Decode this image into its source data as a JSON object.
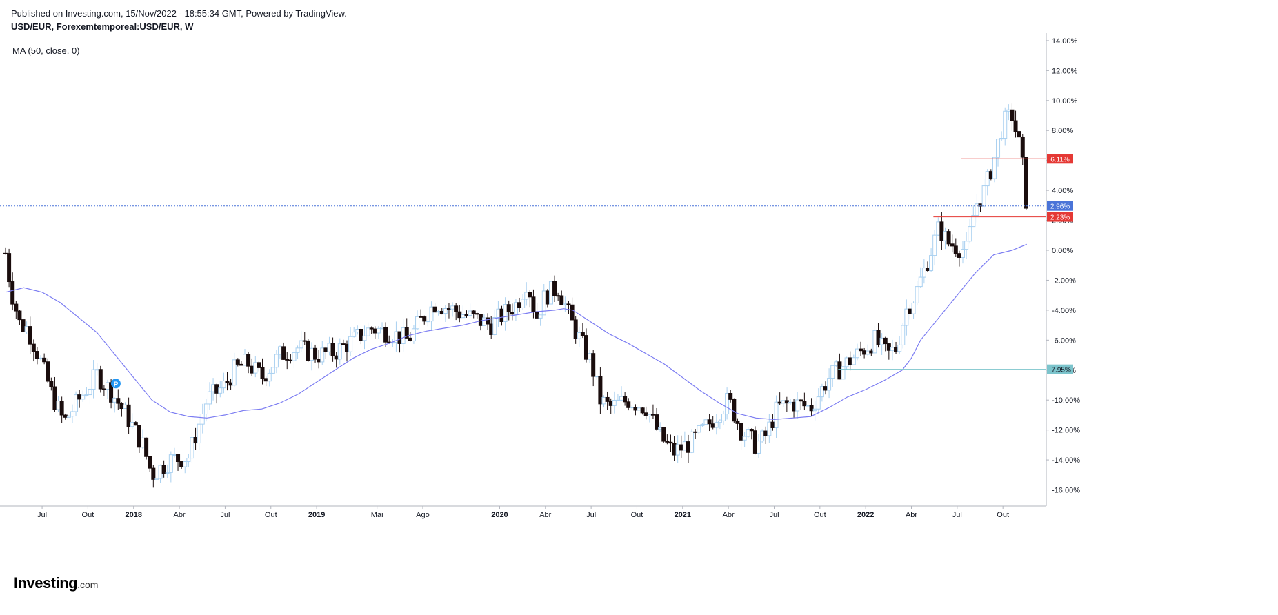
{
  "header": {
    "published": "Published on Investing.com, 15/Nov/2022 - 18:55:34 GMT, Powered by TradingView.",
    "symbol": "USD/EUR, Forexemtemporeal:USD/EUR, W"
  },
  "indicator": {
    "label": "MA (50, close, 0)",
    "color": "#7b7cf2"
  },
  "logo": {
    "brand": "Investing",
    "tld": ".com"
  },
  "marker": {
    "label": "P",
    "color": "#2196f3"
  },
  "colors": {
    "up_outline": "#a9d0f0",
    "down_fill": "#1a0d0d",
    "hline": "#e53935",
    "current": "#4a74d8",
    "level": "#7cc4cc"
  },
  "chart_data": {
    "type": "candlestick",
    "timeframe": "W",
    "y_unit": "%",
    "ylim": [
      -17,
      14.5
    ],
    "y_ticks": [
      "14.00%",
      "12.00%",
      "10.00%",
      "8.00%",
      "6.00%",
      "4.00%",
      "2.00%",
      "0.00%",
      "-2.00%",
      "-4.00%",
      "-6.00%",
      "-8.00%",
      "-10.00%",
      "-12.00%",
      "-14.00%",
      "-16.00%"
    ],
    "x_ticks": [
      {
        "label": "Jul",
        "t": 2017.5
      },
      {
        "label": "Out",
        "t": 2017.75
      },
      {
        "label": "2018",
        "t": 2018.0
      },
      {
        "label": "Abr",
        "t": 2018.25
      },
      {
        "label": "Jul",
        "t": 2018.5
      },
      {
        "label": "Out",
        "t": 2018.75
      },
      {
        "label": "2019",
        "t": 2019.0
      },
      {
        "label": "Mai",
        "t": 2019.33
      },
      {
        "label": "Ago",
        "t": 2019.58
      },
      {
        "label": "2020",
        "t": 2020.0
      },
      {
        "label": "Abr",
        "t": 2020.25
      },
      {
        "label": "Jul",
        "t": 2020.5
      },
      {
        "label": "Out",
        "t": 2020.75
      },
      {
        "label": "2021",
        "t": 2021.0
      },
      {
        "label": "Abr",
        "t": 2021.25
      },
      {
        "label": "Jul",
        "t": 2021.5
      },
      {
        "label": "Out",
        "t": 2021.75
      },
      {
        "label": "2022",
        "t": 2022.0
      },
      {
        "label": "Abr",
        "t": 2022.25
      },
      {
        "label": "Jul",
        "t": 2022.5
      },
      {
        "label": "Out",
        "t": 2022.75
      }
    ],
    "price_keypoints": [
      [
        2017.3,
        -0.2
      ],
      [
        2017.33,
        -2.6
      ],
      [
        2017.38,
        -5.0
      ],
      [
        2017.42,
        -5.2
      ],
      [
        2017.48,
        -7.0
      ],
      [
        2017.55,
        -9.5
      ],
      [
        2017.62,
        -11.5
      ],
      [
        2017.7,
        -10.0
      ],
      [
        2017.8,
        -8.3
      ],
      [
        2017.88,
        -9.5
      ],
      [
        2017.96,
        -11.0
      ],
      [
        2018.05,
        -13.0
      ],
      [
        2018.1,
        -15.0
      ],
      [
        2018.2,
        -14.0
      ],
      [
        2018.3,
        -13.8
      ],
      [
        2018.4,
        -10.0
      ],
      [
        2018.5,
        -9.0
      ],
      [
        2018.55,
        -8.0
      ],
      [
        2018.62,
        -7.5
      ],
      [
        2018.7,
        -8.5
      ],
      [
        2018.8,
        -7.0
      ],
      [
        2018.9,
        -6.5
      ],
      [
        2019.0,
        -7.0
      ],
      [
        2019.1,
        -6.8
      ],
      [
        2019.2,
        -6.0
      ],
      [
        2019.3,
        -5.2
      ],
      [
        2019.4,
        -5.5
      ],
      [
        2019.5,
        -6.0
      ],
      [
        2019.58,
        -4.5
      ],
      [
        2019.65,
        -3.5
      ],
      [
        2019.75,
        -4.0
      ],
      [
        2019.85,
        -4.5
      ],
      [
        2019.95,
        -5.0
      ],
      [
        2020.1,
        -3.5
      ],
      [
        2020.15,
        -2.0
      ],
      [
        2020.2,
        -4.5
      ],
      [
        2020.25,
        -3.0
      ],
      [
        2020.32,
        -2.5
      ],
      [
        2020.4,
        -5.0
      ],
      [
        2020.46,
        -6.5
      ],
      [
        2020.5,
        -7.5
      ],
      [
        2020.55,
        -10.0
      ],
      [
        2020.6,
        -10.5
      ],
      [
        2020.7,
        -10.0
      ],
      [
        2020.8,
        -10.5
      ],
      [
        2020.88,
        -12.5
      ],
      [
        2020.95,
        -13.5
      ],
      [
        2021.05,
        -12.8
      ],
      [
        2021.15,
        -11.5
      ],
      [
        2021.25,
        -10.0
      ],
      [
        2021.32,
        -12.0
      ],
      [
        2021.4,
        -13.0
      ],
      [
        2021.45,
        -12.5
      ],
      [
        2021.52,
        -10.5
      ],
      [
        2021.6,
        -10.2
      ],
      [
        2021.7,
        -10.5
      ],
      [
        2021.8,
        -8.5
      ],
      [
        2021.9,
        -7.5
      ],
      [
        2022.0,
        -6.5
      ],
      [
        2022.05,
        -6.0
      ],
      [
        2022.12,
        -7.0
      ],
      [
        2022.17,
        -6.5
      ],
      [
        2022.22,
        -4.0
      ],
      [
        2022.27,
        -3.0
      ],
      [
        2022.33,
        -1.0
      ],
      [
        2022.4,
        1.5
      ],
      [
        2022.45,
        0.5
      ],
      [
        2022.55,
        0.0
      ],
      [
        2022.6,
        3.0
      ],
      [
        2022.65,
        4.0
      ],
      [
        2022.7,
        6.0
      ],
      [
        2022.75,
        8.5
      ],
      [
        2022.8,
        9.0
      ],
      [
        2022.85,
        6.5
      ],
      [
        2022.88,
        3.0
      ]
    ],
    "ma_keypoints": [
      [
        2017.3,
        -2.8
      ],
      [
        2017.4,
        -2.5
      ],
      [
        2017.5,
        -2.8
      ],
      [
        2017.6,
        -3.5
      ],
      [
        2017.7,
        -4.5
      ],
      [
        2017.8,
        -5.5
      ],
      [
        2017.9,
        -7.0
      ],
      [
        2018.0,
        -8.5
      ],
      [
        2018.1,
        -10.0
      ],
      [
        2018.2,
        -10.8
      ],
      [
        2018.3,
        -11.1
      ],
      [
        2018.4,
        -11.2
      ],
      [
        2018.5,
        -11.0
      ],
      [
        2018.6,
        -10.7
      ],
      [
        2018.7,
        -10.6
      ],
      [
        2018.8,
        -10.2
      ],
      [
        2018.9,
        -9.6
      ],
      [
        2019.0,
        -8.8
      ],
      [
        2019.1,
        -8.0
      ],
      [
        2019.2,
        -7.2
      ],
      [
        2019.3,
        -6.6
      ],
      [
        2019.4,
        -6.2
      ],
      [
        2019.5,
        -5.7
      ],
      [
        2019.6,
        -5.4
      ],
      [
        2019.7,
        -5.2
      ],
      [
        2019.8,
        -5.0
      ],
      [
        2019.9,
        -4.7
      ],
      [
        2020.0,
        -4.5
      ],
      [
        2020.1,
        -4.3
      ],
      [
        2020.2,
        -4.1
      ],
      [
        2020.3,
        -4.0
      ],
      [
        2020.35,
        -3.9
      ],
      [
        2020.4,
        -4.0
      ],
      [
        2020.5,
        -4.8
      ],
      [
        2020.6,
        -5.6
      ],
      [
        2020.7,
        -6.2
      ],
      [
        2020.8,
        -6.9
      ],
      [
        2020.9,
        -7.6
      ],
      [
        2021.0,
        -8.5
      ],
      [
        2021.1,
        -9.4
      ],
      [
        2021.2,
        -10.2
      ],
      [
        2021.3,
        -10.9
      ],
      [
        2021.4,
        -11.2
      ],
      [
        2021.5,
        -11.3
      ],
      [
        2021.6,
        -11.2
      ],
      [
        2021.7,
        -11.1
      ],
      [
        2021.8,
        -10.5
      ],
      [
        2021.9,
        -9.8
      ],
      [
        2022.0,
        -9.3
      ],
      [
        2022.1,
        -8.7
      ],
      [
        2022.2,
        -8.0
      ],
      [
        2022.25,
        -7.2
      ],
      [
        2022.3,
        -6.0
      ],
      [
        2022.4,
        -4.5
      ],
      [
        2022.5,
        -3.0
      ],
      [
        2022.6,
        -1.5
      ],
      [
        2022.7,
        -0.3
      ],
      [
        2022.8,
        0.0
      ],
      [
        2022.88,
        0.4
      ]
    ],
    "horizontal_lines": [
      {
        "value": 6.11,
        "label": "6.11%",
        "color": "#e53935",
        "from_t": 2022.52
      },
      {
        "value": 2.23,
        "label": "2.23%",
        "color": "#e53935",
        "from_t": 2022.37
      },
      {
        "value": -7.95,
        "label": "-7.95%",
        "color": "#7cc4cc",
        "from_t": 2021.85
      }
    ],
    "current_value": {
      "value": 2.96,
      "label": "2.96%",
      "color": "#4a74d8"
    },
    "marker_point": {
      "t": 2017.88,
      "value": -8.9
    }
  }
}
